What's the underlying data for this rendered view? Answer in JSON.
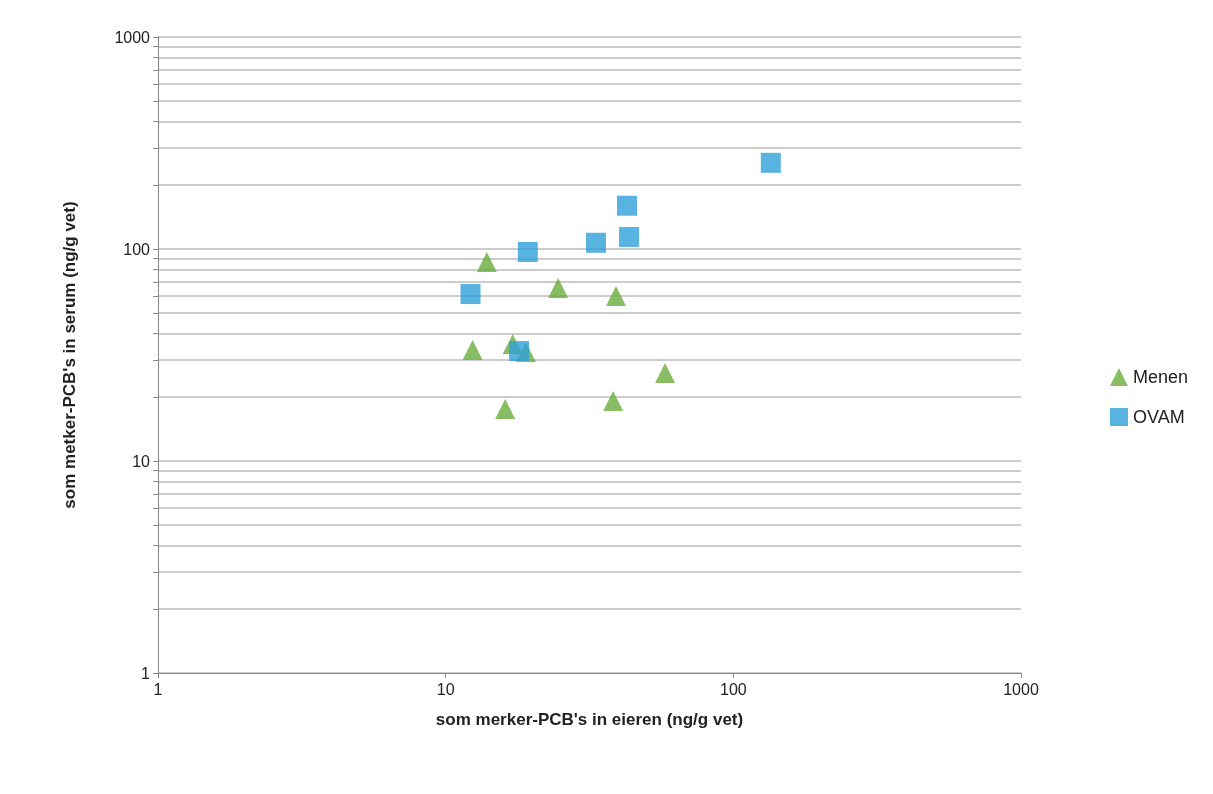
{
  "chart_data": {
    "type": "scatter",
    "xlabel": "som merker-PCB's in eieren (ng/g vet)",
    "ylabel": "som metker-PCB's in serum (ng/g vet)",
    "log": "xy",
    "xlim": [
      1,
      1000
    ],
    "xticks": [
      1,
      10,
      100,
      1000
    ],
    "ylim": [
      1,
      1000
    ],
    "yticks": [
      1,
      {
        "value": 2,
        "label": null
      },
      {
        "value": 3,
        "label": null
      },
      {
        "value": 4,
        "label": null
      },
      {
        "value": 5,
        "label": null
      },
      {
        "value": 6,
        "label": null
      },
      {
        "value": 7,
        "label": null
      },
      {
        "value": 8,
        "label": null
      },
      {
        "value": 9,
        "label": null
      },
      10,
      {
        "value": 20,
        "label": null
      },
      {
        "value": 30,
        "label": null
      },
      {
        "value": 40,
        "label": null
      },
      {
        "value": 50,
        "label": null
      },
      {
        "value": 60,
        "label": null
      },
      {
        "value": 70,
        "label": null
      },
      {
        "value": 80,
        "label": null
      },
      {
        "value": 90,
        "label": null
      },
      100,
      {
        "value": 200,
        "label": null
      },
      {
        "value": 300,
        "label": null
      },
      {
        "value": 400,
        "label": null
      },
      {
        "value": 500,
        "label": null
      },
      {
        "value": 600,
        "label": null
      },
      {
        "value": 700,
        "label": null
      },
      {
        "value": 800,
        "label": null
      },
      {
        "value": 900,
        "label": null
      },
      1000
    ],
    "grid": "y",
    "legend": "right",
    "series": [
      {
        "name": "Menen",
        "color": "#6aad3d",
        "marker": "triangle",
        "x": [
          12.4,
          13.9,
          17.1,
          19.0,
          16.1,
          24.6,
          39.1,
          38.2,
          57.9
        ],
        "values": [
          33.4,
          86.9,
          35.6,
          32.7,
          17.6,
          65.5,
          60.0,
          19.2,
          26.0
        ]
      },
      {
        "name": "OVAM",
        "color": "#30a0da",
        "marker": "square",
        "x": [
          12.2,
          19.3,
          18.0,
          33.3,
          42.7,
          43.4,
          135
        ],
        "values": [
          61.3,
          96.8,
          33.0,
          107,
          160,
          114,
          255
        ]
      }
    ]
  }
}
